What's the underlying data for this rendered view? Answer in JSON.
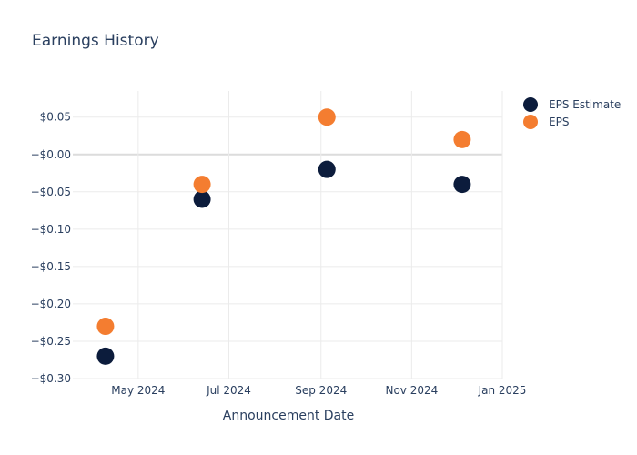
{
  "chart_data": {
    "type": "scatter",
    "title": "Earnings History",
    "xlabel": "Announcement Date",
    "ylabel": "",
    "x_axis": "date",
    "xlim": [
      "2024-03-18",
      "2025-01-01"
    ],
    "ylim": [
      -0.3,
      0.085
    ],
    "x_ticks": [
      {
        "value": "2024-05-01",
        "label": "May 2024"
      },
      {
        "value": "2024-07-01",
        "label": "Jul 2024"
      },
      {
        "value": "2024-09-01",
        "label": "Sep 2024"
      },
      {
        "value": "2024-11-01",
        "label": "Nov 2024"
      },
      {
        "value": "2025-01-01",
        "label": "Jan 2025"
      }
    ],
    "y_ticks": [
      {
        "value": 0.05,
        "label": "$0.05"
      },
      {
        "value": 0.0,
        "label": "−$0.00"
      },
      {
        "value": -0.05,
        "label": "−$0.05"
      },
      {
        "value": -0.1,
        "label": "−$0.10"
      },
      {
        "value": -0.15,
        "label": "−$0.15"
      },
      {
        "value": -0.2,
        "label": "−$0.20"
      },
      {
        "value": -0.25,
        "label": "−$0.25"
      },
      {
        "value": -0.3,
        "label": "−$0.30"
      }
    ],
    "grid": true,
    "legend_position": "top-right",
    "series": [
      {
        "name": "EPS Estimate",
        "color": "#0c1c3c",
        "x": [
          "2024-04-09",
          "2024-06-13",
          "2024-09-05",
          "2024-12-05"
        ],
        "y": [
          -0.27,
          -0.06,
          -0.02,
          -0.04
        ]
      },
      {
        "name": "EPS",
        "color": "#f47d30",
        "x": [
          "2024-04-09",
          "2024-06-13",
          "2024-09-05",
          "2024-12-05"
        ],
        "y": [
          -0.23,
          -0.04,
          0.05,
          0.02
        ]
      }
    ]
  }
}
